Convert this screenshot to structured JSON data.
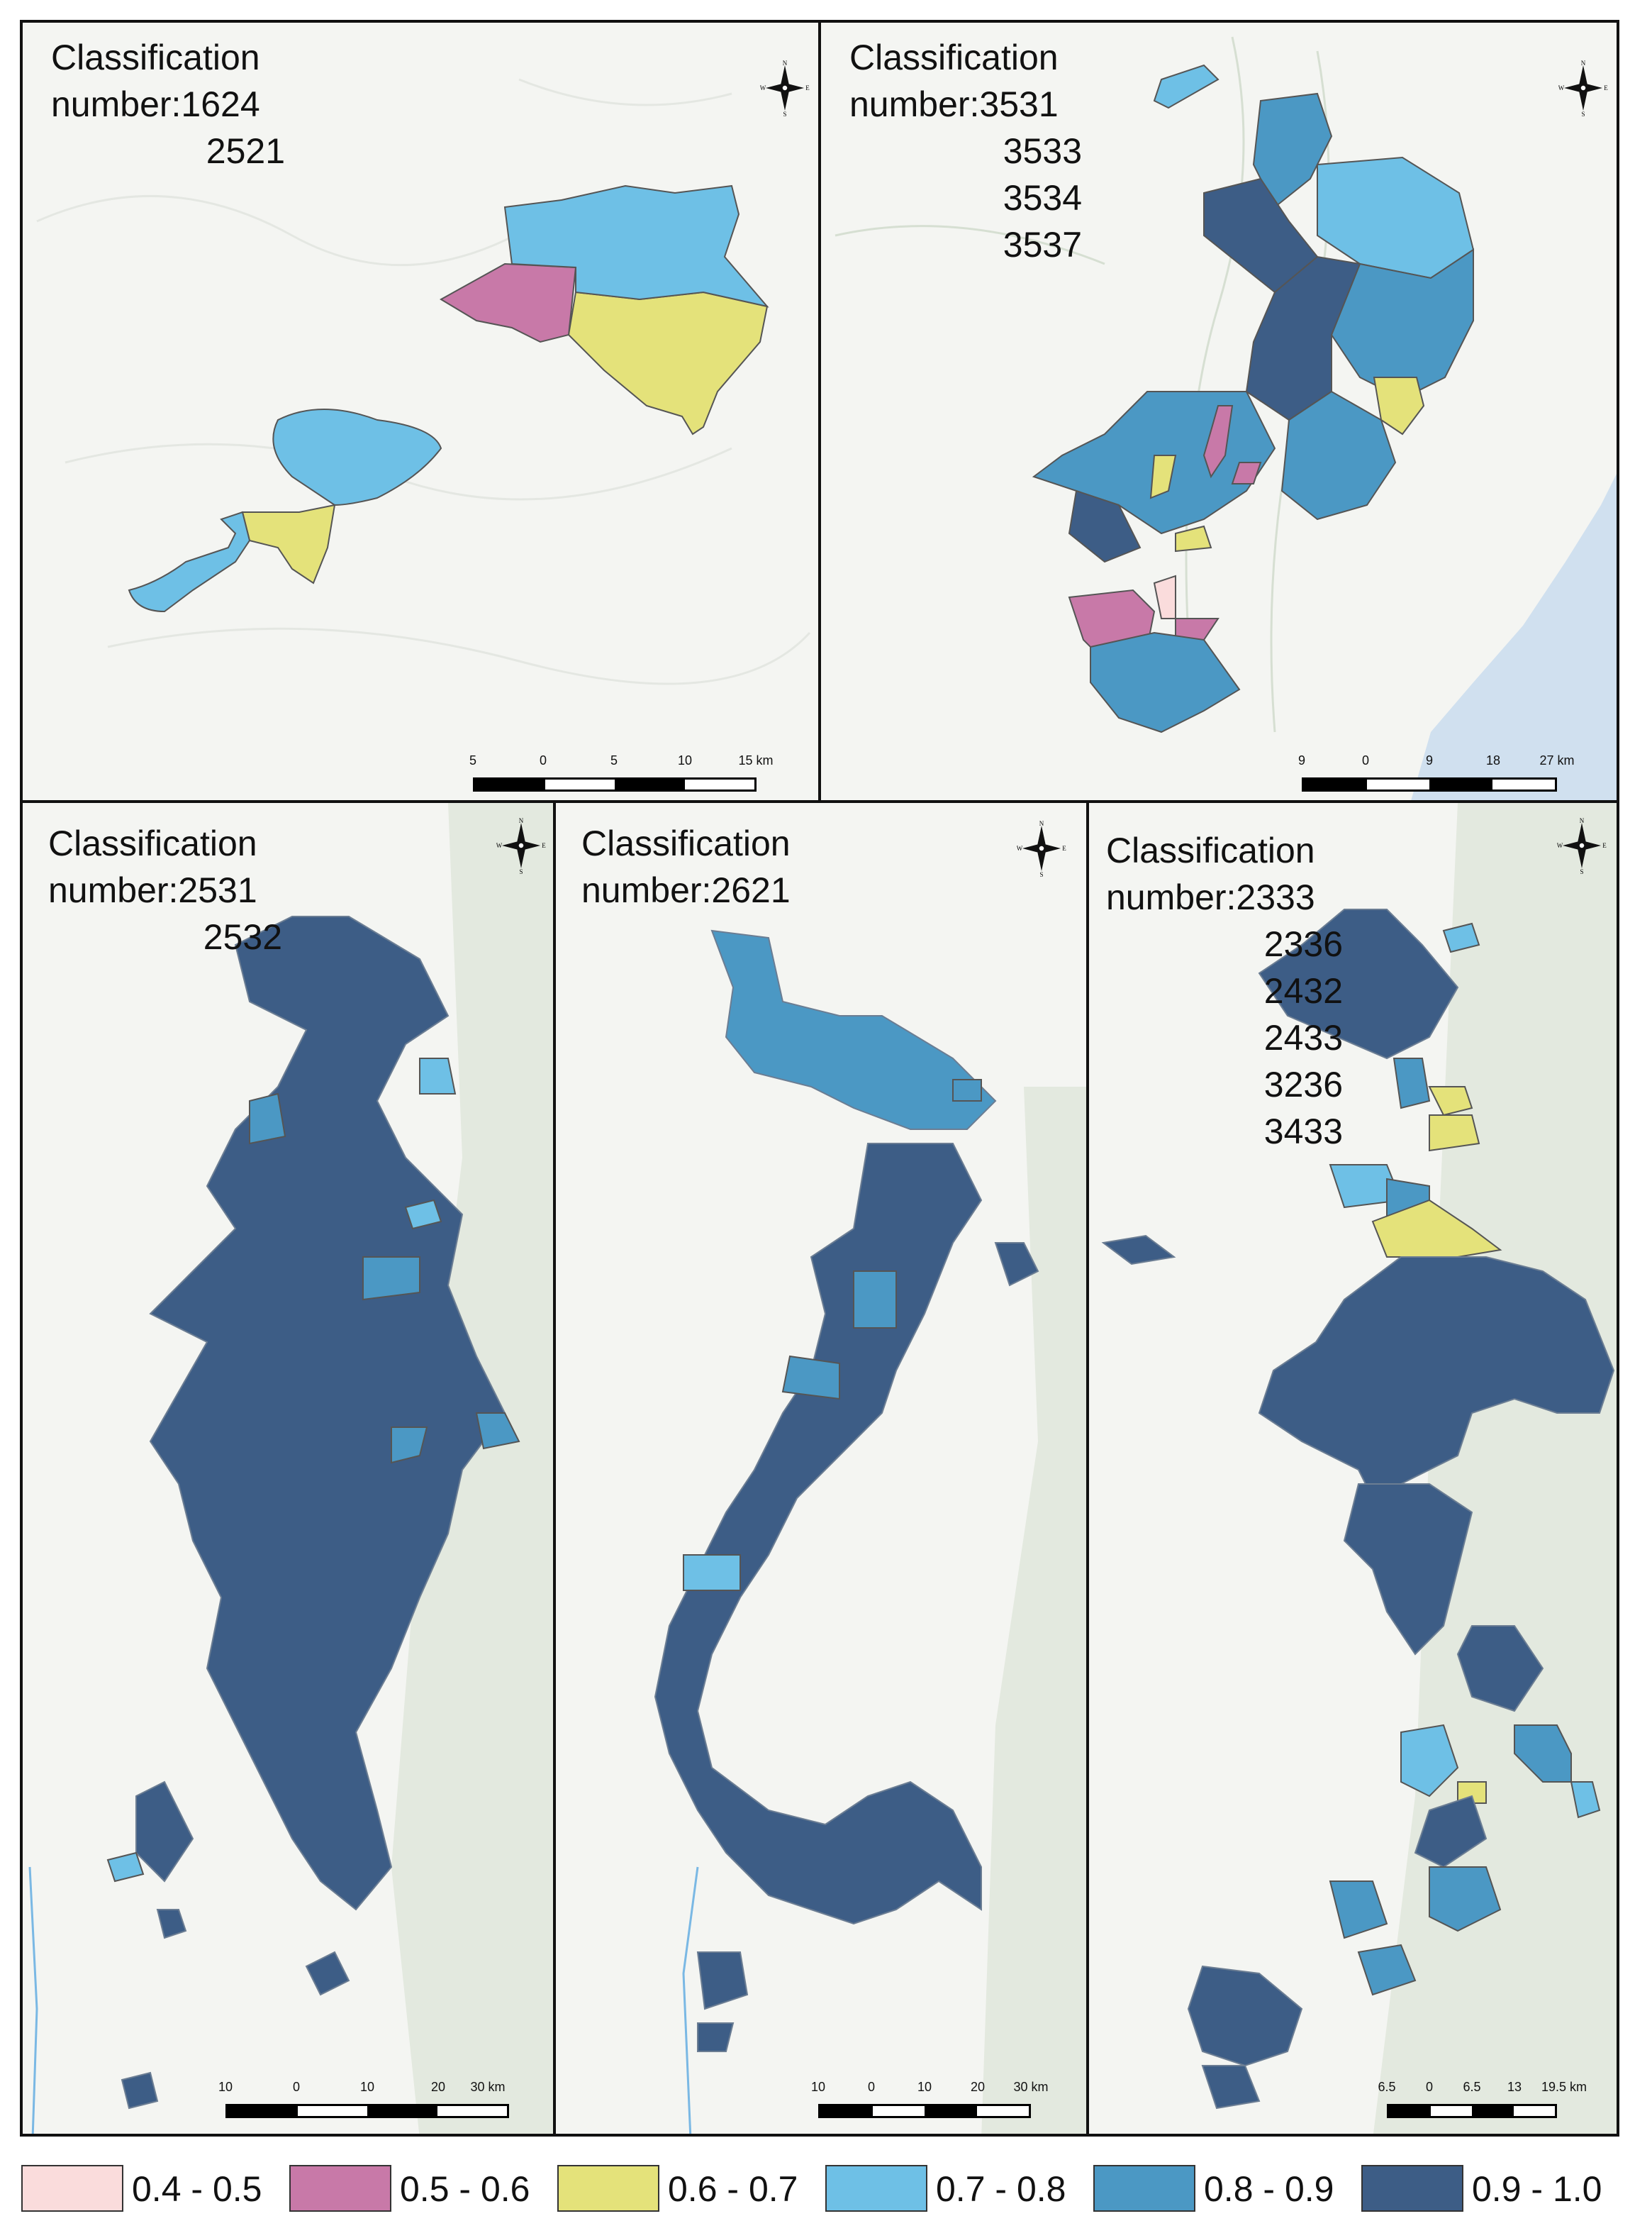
{
  "panels": [
    {
      "id": "p1",
      "title": "Classification\nnumber:1624",
      "codes": [
        "2521"
      ],
      "scale": {
        "labels": [
          "5",
          "0",
          "5",
          "10",
          "15 km"
        ]
      }
    },
    {
      "id": "p2",
      "title": "Classification\nnumber:3531",
      "codes": [
        "3533",
        "3534",
        "3537"
      ],
      "scale": {
        "labels": [
          "9",
          "0",
          "9",
          "18",
          "27 km"
        ]
      }
    },
    {
      "id": "p3",
      "title": "Classification\nnumber:2531",
      "codes": [
        "2532"
      ],
      "scale": {
        "labels": [
          "10",
          "0",
          "10",
          "20",
          "30 km"
        ]
      }
    },
    {
      "id": "p4",
      "title": "Classification\nnumber:2621",
      "codes": [],
      "scale": {
        "labels": [
          "10",
          "0",
          "10",
          "20",
          "30 km"
        ]
      }
    },
    {
      "id": "p5",
      "title": "Classification\nnumber:2333",
      "codes": [
        "2336",
        "2432",
        "2433",
        "3236",
        "3433"
      ],
      "scale": {
        "labels": [
          "6.5",
          "0",
          "6.5",
          "13",
          "19.5 km"
        ]
      }
    }
  ],
  "compass": {
    "n": "N",
    "s": "S",
    "e": "E",
    "w": "W"
  },
  "legend": [
    {
      "label": "0.4 - 0.5",
      "color": "#fadcdc"
    },
    {
      "label": "0.5 - 0.6",
      "color": "#c879a8"
    },
    {
      "label": "0.6 - 0.7",
      "color": "#e4e27a"
    },
    {
      "label": "0.7 - 0.8",
      "color": "#6ec0e6"
    },
    {
      "label": "0.8 - 0.9",
      "color": "#4b98c4"
    },
    {
      "label": "0.9 - 1.0",
      "color": "#3d5d86"
    }
  ]
}
